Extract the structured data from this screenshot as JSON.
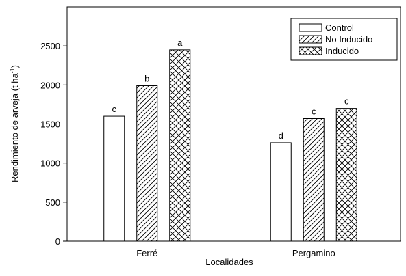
{
  "chart_data": {
    "type": "bar",
    "xlabel": "Localidades",
    "ylabel": "Rendimiento de arveja (t ha",
    "ylabel_sup": "-1",
    "ylabel_end": ")",
    "categories": [
      "Ferré",
      "Pergamino"
    ],
    "series": [
      {
        "name": "Control",
        "color": "#ffffff",
        "pattern": "none",
        "values": [
          1600,
          1260
        ],
        "letters": [
          "c",
          "d"
        ]
      },
      {
        "name": "No Inducido",
        "color": "#ffffff",
        "pattern": "diagonal",
        "values": [
          1990,
          1570
        ],
        "letters": [
          "b",
          "c"
        ]
      },
      {
        "name": "Inducido",
        "color": "#ffffff",
        "pattern": "crosshatch",
        "values": [
          2450,
          1700
        ],
        "letters": [
          "a",
          "c"
        ]
      }
    ],
    "ylim": [
      0,
      3000
    ],
    "yticks": [
      0,
      500,
      1000,
      1500,
      2000,
      2500
    ],
    "legend": "upper right"
  }
}
